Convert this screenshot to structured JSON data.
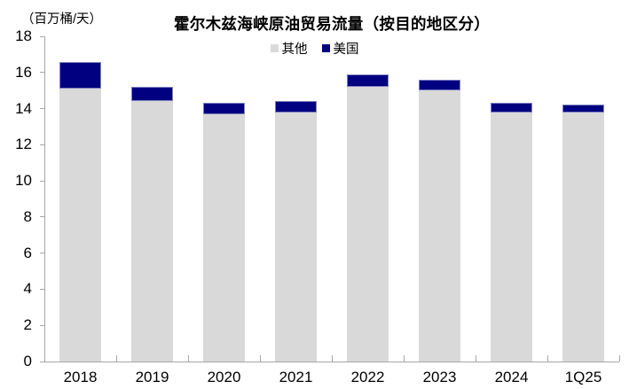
{
  "chart_data": {
    "type": "bar",
    "stacked": true,
    "title": "霍尔木兹海峡原油贸易流量（按目的地区分）",
    "unit_label": "（百万桶/天）",
    "categories": [
      "2018",
      "2019",
      "2020",
      "2021",
      "2022",
      "2023",
      "2024",
      "1Q25"
    ],
    "series": [
      {
        "key": "other",
        "name": "其他",
        "color": "#d9d9d9",
        "border_color": "#d9d9d9",
        "values": [
          15.1,
          14.4,
          13.7,
          13.8,
          15.2,
          15.0,
          13.8,
          13.8
        ]
      },
      {
        "key": "us",
        "name": "美国",
        "color": "#000080",
        "border_color": "#8080c0",
        "values": [
          1.5,
          0.8,
          0.6,
          0.6,
          0.7,
          0.6,
          0.5,
          0.4
        ]
      }
    ],
    "totals": [
      16.6,
      15.2,
      14.3,
      14.4,
      15.9,
      15.6,
      14.3,
      14.2
    ],
    "ylim": [
      0,
      18
    ],
    "ytick_step": 2,
    "ytick_labels": [
      "0",
      "2",
      "4",
      "6",
      "8",
      "10",
      "12",
      "14",
      "16",
      "18"
    ],
    "grid": false,
    "legend_position": "top-center",
    "colors": {
      "axis": "#a6a6a6",
      "text": "#000000",
      "background": "#ffffff"
    }
  }
}
